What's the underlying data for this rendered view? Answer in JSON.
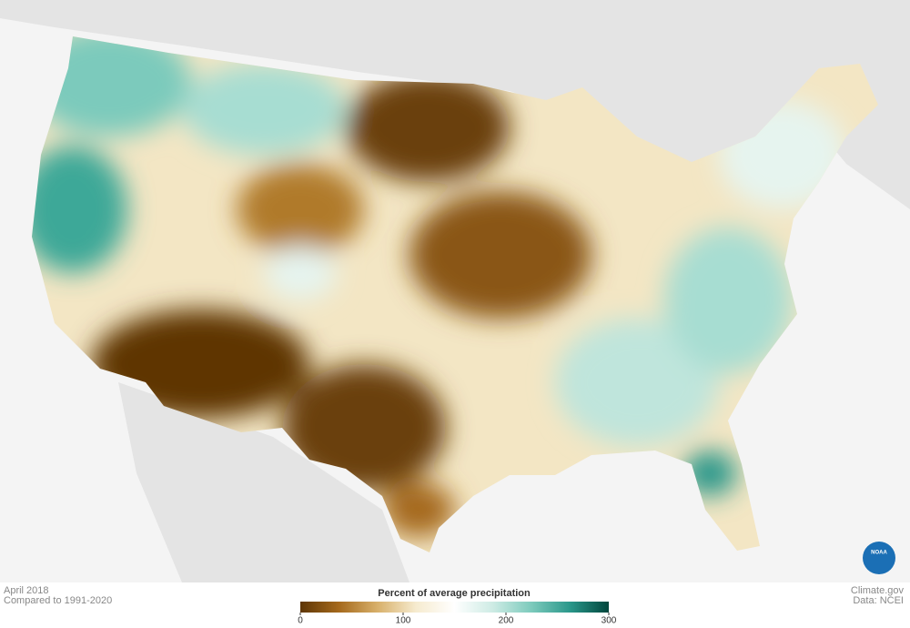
{
  "footer": {
    "date": "April 2018",
    "baseline": "Compared to 1991-2020",
    "credit": "Climate.gov",
    "source": "Data: NCEI"
  },
  "legend": {
    "title": "Percent of average precipitation",
    "ticks": [
      0,
      100,
      200,
      300
    ],
    "colors": [
      "#5e3606",
      "#a5691c",
      "#d8b06a",
      "#f6ebcf",
      "#ffffff",
      "#cdebe4",
      "#7ccabc",
      "#2a978a",
      "#01463c"
    ]
  },
  "logo": "NOAA"
}
